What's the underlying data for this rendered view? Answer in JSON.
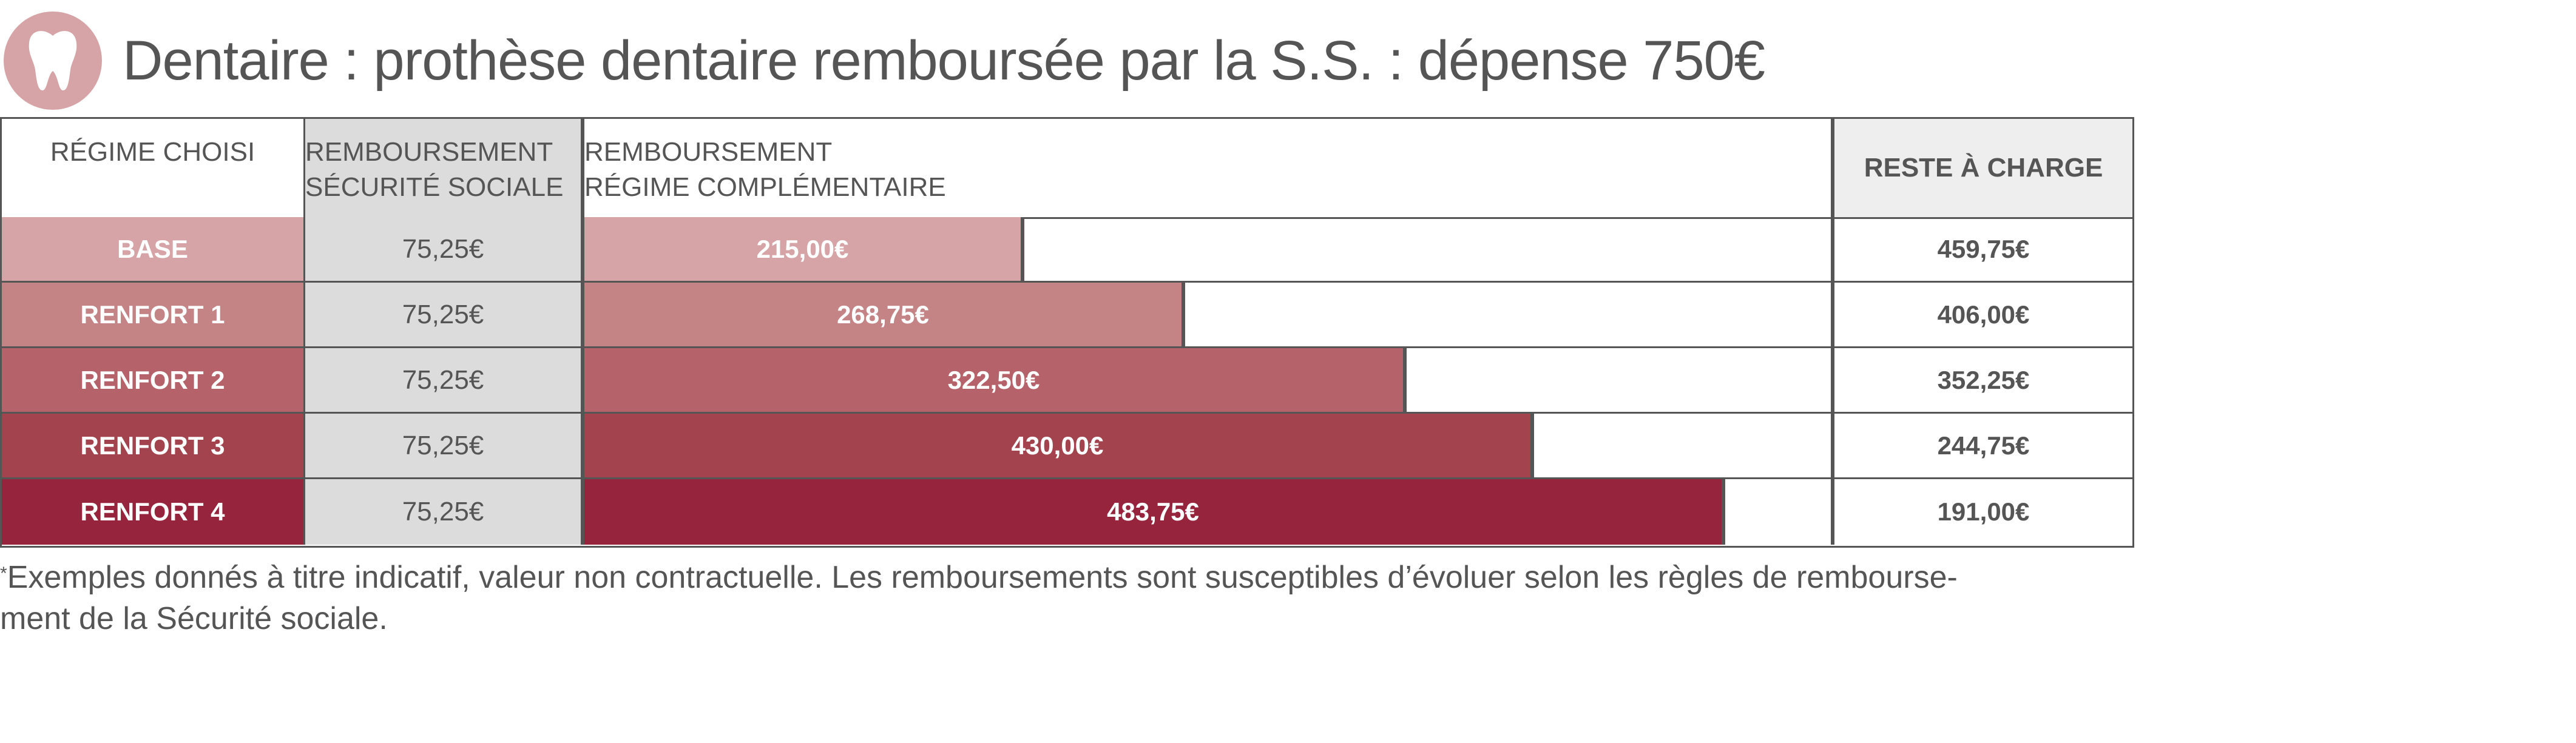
{
  "title": "Dentaire : prothèse dentaire remboursée par la S.S. : dépense 750€",
  "icon": "tooth-icon",
  "colors": {
    "badge": "#d6a3a6",
    "base": "#d6a3a6",
    "renfort1": "#c48385",
    "renfort2": "#b6626a",
    "renfort3": "#a3434d",
    "renfort4": "#96243c",
    "ss_background": "#dcdcdc",
    "border": "#555555"
  },
  "headers": {
    "regime": "RÉGIME CHOISI",
    "ss_line1": "REMBOURSEMENT",
    "ss_line2": "SÉCURITÉ SOCIALE",
    "comp_line1": "REMBOURSEMENT",
    "comp_line2": "RÉGIME COMPLÉMENTAIRE",
    "reste": "RESTE À CHARGE"
  },
  "chart_data": {
    "type": "bar",
    "categories": [
      "BASE",
      "RENFORT 1",
      "RENFORT 2",
      "RENFORT 3",
      "RENFORT 4"
    ],
    "ss_values": [
      "75,25€",
      "75,25€",
      "75,25€",
      "75,25€",
      "75,25€"
    ],
    "series": [
      {
        "values": [
          215.0,
          268.75,
          322.5,
          430.0,
          483.75
        ]
      }
    ],
    "value_labels": [
      "215,00€",
      "268,75€",
      "322,50€",
      "430,00€",
      "483,75€"
    ],
    "reste_labels": [
      "459,75€",
      "406,00€",
      "352,25€",
      "244,75€",
      "191,00€"
    ],
    "reste_values": [
      459.75,
      406.0,
      352.25,
      244.75,
      191.0
    ]
  },
  "rows": [
    {
      "label": "BASE",
      "ss": "75,25€",
      "comp": "215,00€",
      "reste": "459,75€"
    },
    {
      "label": "RENFORT 1",
      "ss": "75,25€",
      "comp": "268,75€",
      "reste": "406,00€"
    },
    {
      "label": "RENFORT 2",
      "ss": "75,25€",
      "comp": "322,50€",
      "reste": "352,25€"
    },
    {
      "label": "RENFORT 3",
      "ss": "75,25€",
      "comp": "430,00€",
      "reste": "244,75€"
    },
    {
      "label": "RENFORT 4",
      "ss": "75,25€",
      "comp": "483,75€",
      "reste": "191,00€"
    }
  ],
  "footnote": {
    "mark": "*",
    "line1": "Exemples donnés à titre indicatif, valeur non contractuelle. Les remboursements sont susceptibles d’évoluer selon les règles de rembourse-",
    "line2": "ment de la Sécurité sociale."
  }
}
